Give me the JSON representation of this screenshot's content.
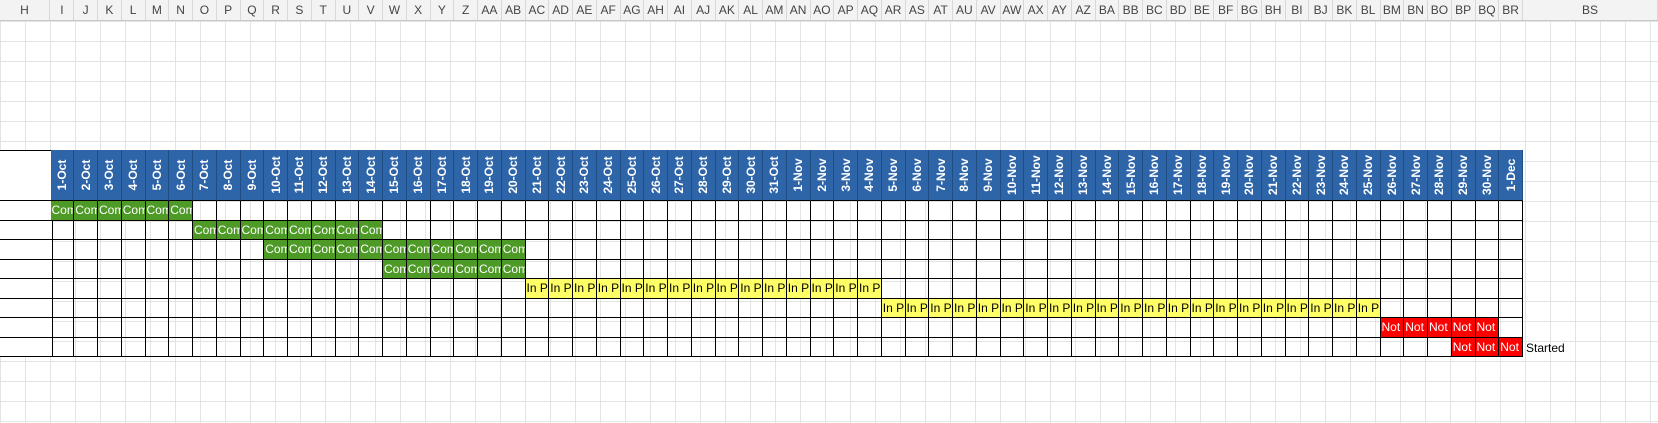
{
  "column_letters": [
    "H",
    "I",
    "J",
    "K",
    "L",
    "M",
    "N",
    "O",
    "P",
    "Q",
    "R",
    "S",
    "T",
    "U",
    "V",
    "W",
    "X",
    "Y",
    "Z",
    "AA",
    "AB",
    "AC",
    "AD",
    "AE",
    "AF",
    "AG",
    "AH",
    "AI",
    "AJ",
    "AK",
    "AL",
    "AM",
    "AN",
    "AO",
    "AP",
    "AQ",
    "AR",
    "AS",
    "AT",
    "AU",
    "AV",
    "AW",
    "AX",
    "AY",
    "AZ",
    "BA",
    "BB",
    "BC",
    "BD",
    "BE",
    "BF",
    "BG",
    "BH",
    "BI",
    "BJ",
    "BK",
    "BL",
    "BM",
    "BN",
    "BO",
    "BP",
    "BQ",
    "BR",
    "BS"
  ],
  "dates": [
    "1-Oct",
    "2-Oct",
    "3-Oct",
    "4-Oct",
    "5-Oct",
    "6-Oct",
    "7-Oct",
    "8-Oct",
    "9-Oct",
    "10-Oct",
    "11-Oct",
    "12-Oct",
    "13-Oct",
    "14-Oct",
    "15-Oct",
    "16-Oct",
    "17-Oct",
    "18-Oct",
    "19-Oct",
    "20-Oct",
    "21-Oct",
    "22-Oct",
    "23-Oct",
    "24-Oct",
    "25-Oct",
    "26-Oct",
    "27-Oct",
    "28-Oct",
    "29-Oct",
    "30-Oct",
    "31-Oct",
    "1-Nov",
    "2-Nov",
    "3-Nov",
    "4-Nov",
    "5-Nov",
    "6-Nov",
    "7-Nov",
    "8-Nov",
    "9-Nov",
    "10-Nov",
    "11-Nov",
    "12-Nov",
    "13-Nov",
    "14-Nov",
    "15-Nov",
    "16-Nov",
    "17-Nov",
    "18-Nov",
    "19-Nov",
    "20-Nov",
    "21-Nov",
    "22-Nov",
    "23-Nov",
    "24-Nov",
    "25-Nov",
    "26-Nov",
    "27-Nov",
    "28-Nov",
    "29-Nov",
    "30-Nov",
    "1-Dec"
  ],
  "status_styles": {
    "Completed": {
      "bg": "#4e9a27",
      "color": "#ffffff",
      "short": "Com"
    },
    "In Progress": {
      "bg": "#ffff66",
      "color": "#000000",
      "short": "In P"
    },
    "Not Started": {
      "bg": "#ff0000",
      "color": "#ffffff",
      "short": "Not"
    }
  },
  "tasks": [
    {
      "status": "Completed",
      "start_day": 0,
      "end_day": 5
    },
    {
      "status": "Completed",
      "start_day": 6,
      "end_day": 13
    },
    {
      "status": "Completed",
      "start_day": 9,
      "end_day": 19
    },
    {
      "status": "Completed",
      "start_day": 14,
      "end_day": 19
    },
    {
      "status": "In Progress",
      "start_day": 20,
      "end_day": 34
    },
    {
      "status": "In Progress",
      "start_day": 35,
      "end_day": 55
    },
    {
      "status": "Not Started",
      "start_day": 56,
      "end_day": 60
    },
    {
      "status": "Not Started",
      "start_day": 59,
      "end_day": 61,
      "overflow_text": "Started"
    }
  ]
}
